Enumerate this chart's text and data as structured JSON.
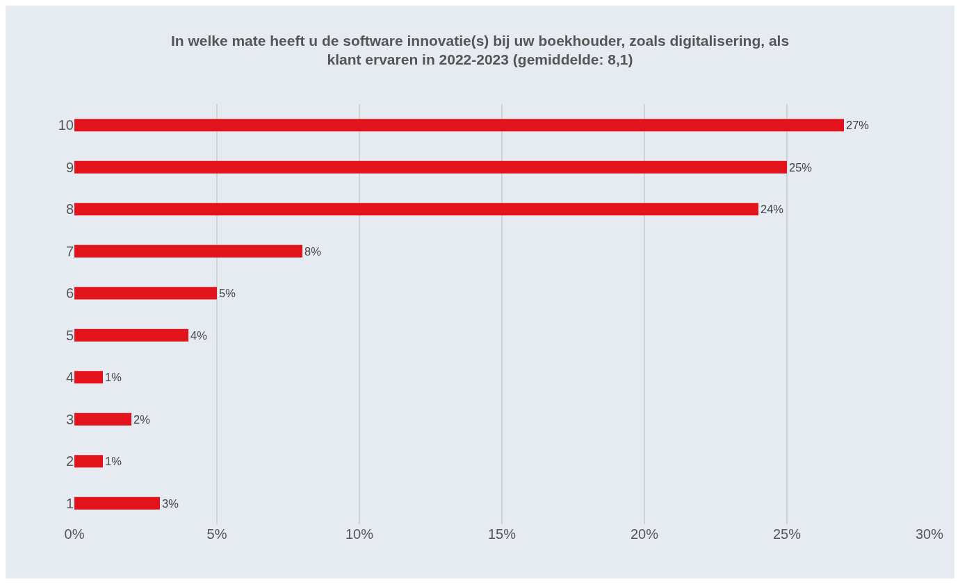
{
  "chart_data": {
    "type": "bar",
    "orientation": "horizontal",
    "title": "In welke mate heeft u de software innovatie(s) bij uw boekhouder, zoals digitalisering, als\nklant ervaren in 2022-2023 (gemiddelde: 8,1)",
    "categories": [
      "10",
      "9",
      "8",
      "7",
      "6",
      "5",
      "4",
      "3",
      "2",
      "1"
    ],
    "values": [
      27,
      25,
      24,
      8,
      5,
      4,
      1,
      2,
      1,
      3
    ],
    "value_labels": [
      "27%",
      "25%",
      "24%",
      "8%",
      "5%",
      "4%",
      "1%",
      "2%",
      "1%",
      "3%"
    ],
    "color": "#e3131b",
    "xlim": [
      0,
      30
    ],
    "xticks": [
      {
        "value": 0,
        "label": "0%"
      },
      {
        "value": 5,
        "label": "5%"
      },
      {
        "value": 10,
        "label": "10%"
      },
      {
        "value": 15,
        "label": "15%"
      },
      {
        "value": 20,
        "label": "20%"
      },
      {
        "value": 25,
        "label": "25%"
      },
      {
        "value": 30,
        "label": "30%"
      }
    ],
    "grid": "x",
    "legend": false
  }
}
